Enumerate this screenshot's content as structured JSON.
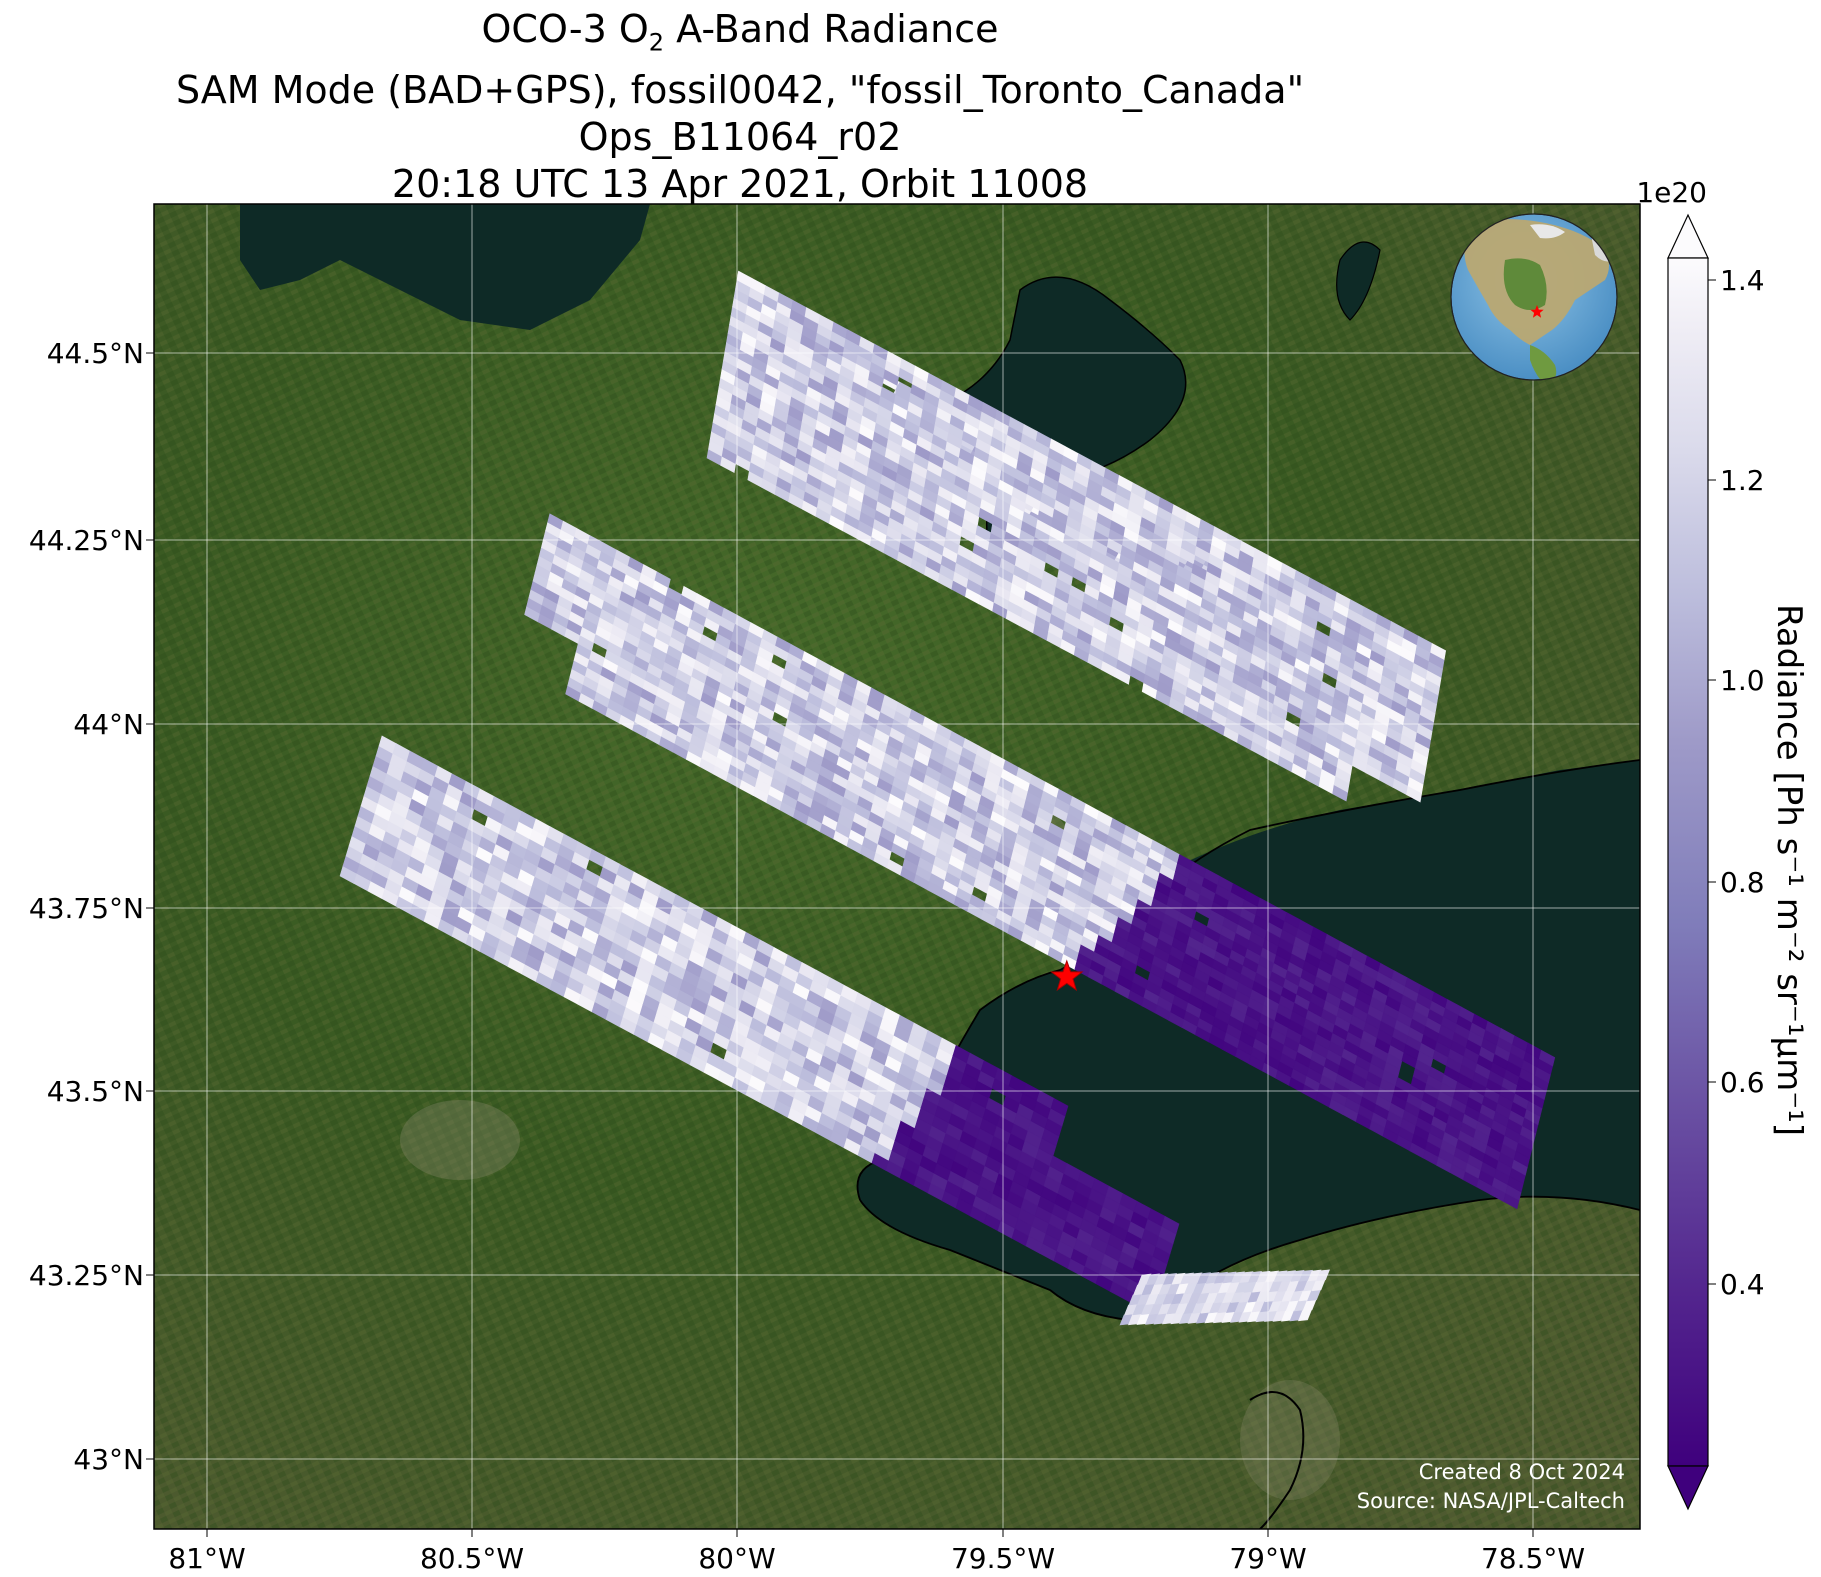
{
  "title": {
    "line1_prefix": "OCO-3 O",
    "line1_subscript": "2",
    "line1_suffix": " A-Band Radiance",
    "line2": "SAM Mode (BAD+GPS), fossil0042, \"fossil_Toronto_Canada\"",
    "line3": "Ops_B11064_r02",
    "line4": "20:18 UTC 13 Apr 2021, Orbit 11008"
  },
  "axes": {
    "lon_ticks": [
      "81°W",
      "80.5°W",
      "80°W",
      "79.5°W",
      "79°W",
      "78.5°W"
    ],
    "lat_ticks": [
      "44.5°N",
      "44.25°N",
      "44°N",
      "43.75°N",
      "43.5°N",
      "43.25°N",
      "43°N"
    ]
  },
  "colorbar": {
    "label": "Radiance [Ph s⁻¹ m⁻² sr⁻¹μm⁻¹]",
    "exponent": "1e20",
    "ticks": [
      "1.4",
      "1.2",
      "1.0",
      "0.8",
      "0.6",
      "0.4"
    ],
    "colormap": "Purples_r",
    "range": [
      0.2,
      1.4
    ],
    "extend": "both"
  },
  "target": {
    "marker": "red-star",
    "lon": -79.38,
    "lat": 43.65,
    "color": "#ff0000"
  },
  "credits": {
    "created": "Created 8 Oct 2024",
    "source": "Source: NASA/JPL-Caltech"
  },
  "map_extent": {
    "lon_min": -81.1,
    "lon_max": -78.3,
    "lat_min": 42.9,
    "lat_max": 44.7
  },
  "colors": {
    "land": "#3a5a22",
    "water": "#0e2a26",
    "purple_min": "#3f007d",
    "purple_max": "#fcfbfd",
    "marker": "#ff0000"
  },
  "inset": {
    "icon": "globe-icon",
    "marker": "red-star"
  }
}
